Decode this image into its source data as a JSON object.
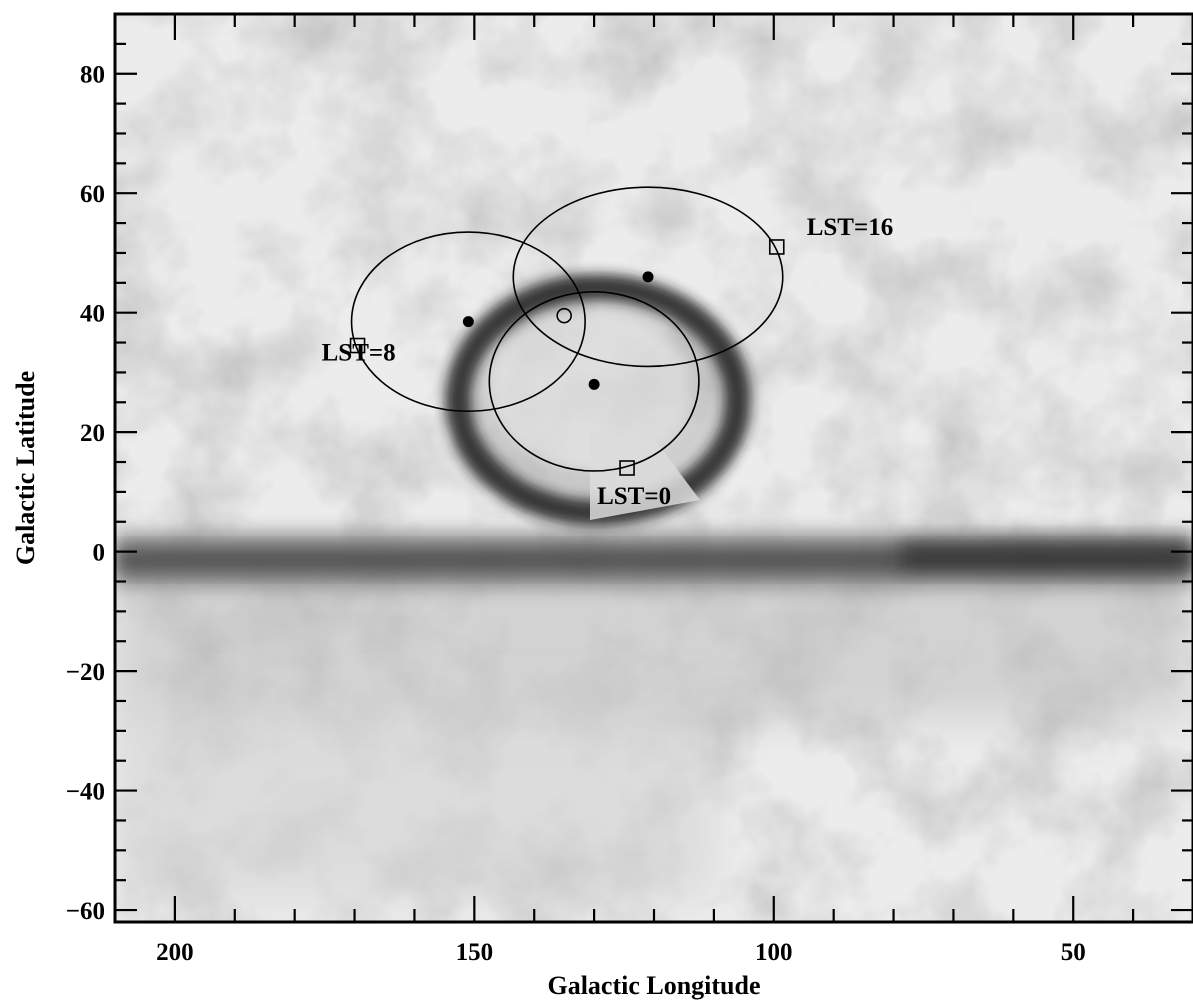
{
  "chart_data": {
    "type": "scatter",
    "background": "grayscale all-sky map (Galactic plane band at b=0, dark ring around l~130, b~30)",
    "xlabel": "Galactic Longitude",
    "ylabel": "Galactic Latitude",
    "xlim": [
      210,
      30
    ],
    "ylim": [
      -62,
      90
    ],
    "x_reversed": true,
    "x_ticks": [
      200,
      150,
      100,
      50
    ],
    "y_ticks": [
      80,
      60,
      40,
      20,
      0,
      -20,
      -40,
      -60
    ],
    "x_tick_labels": [
      "200",
      "150",
      "100",
      "50"
    ],
    "y_tick_labels": [
      "80",
      "60",
      "40",
      "20",
      "0",
      "−20",
      "−40",
      "−60"
    ],
    "grid": false,
    "ellipses": [
      {
        "name": "LST=8 beam",
        "cx": 151,
        "cy": 38.5,
        "rx": 19.5,
        "ry": 15
      },
      {
        "name": "LST=16 beam",
        "cx": 121,
        "cy": 46,
        "rx": 22.5,
        "ry": 15
      },
      {
        "name": "LST=0 beam",
        "cx": 130,
        "cy": 28.5,
        "rx": 17.5,
        "ry": 15
      }
    ],
    "centers": [
      {
        "x": 151,
        "y": 38.5
      },
      {
        "x": 121,
        "y": 46
      },
      {
        "x": 130,
        "y": 28
      }
    ],
    "squares": [
      {
        "x": 169.5,
        "y": 34.5
      },
      {
        "x": 99.5,
        "y": 51
      },
      {
        "x": 124.5,
        "y": 14
      }
    ],
    "open_circle": {
      "x": 135,
      "y": 39.5
    },
    "annotations": [
      {
        "text": "LST=8",
        "x": 175.5,
        "y": 32
      },
      {
        "text": "LST=16",
        "x": 94.5,
        "y": 53
      },
      {
        "text": "LST=0",
        "x": 129.5,
        "y": 8
      }
    ]
  }
}
